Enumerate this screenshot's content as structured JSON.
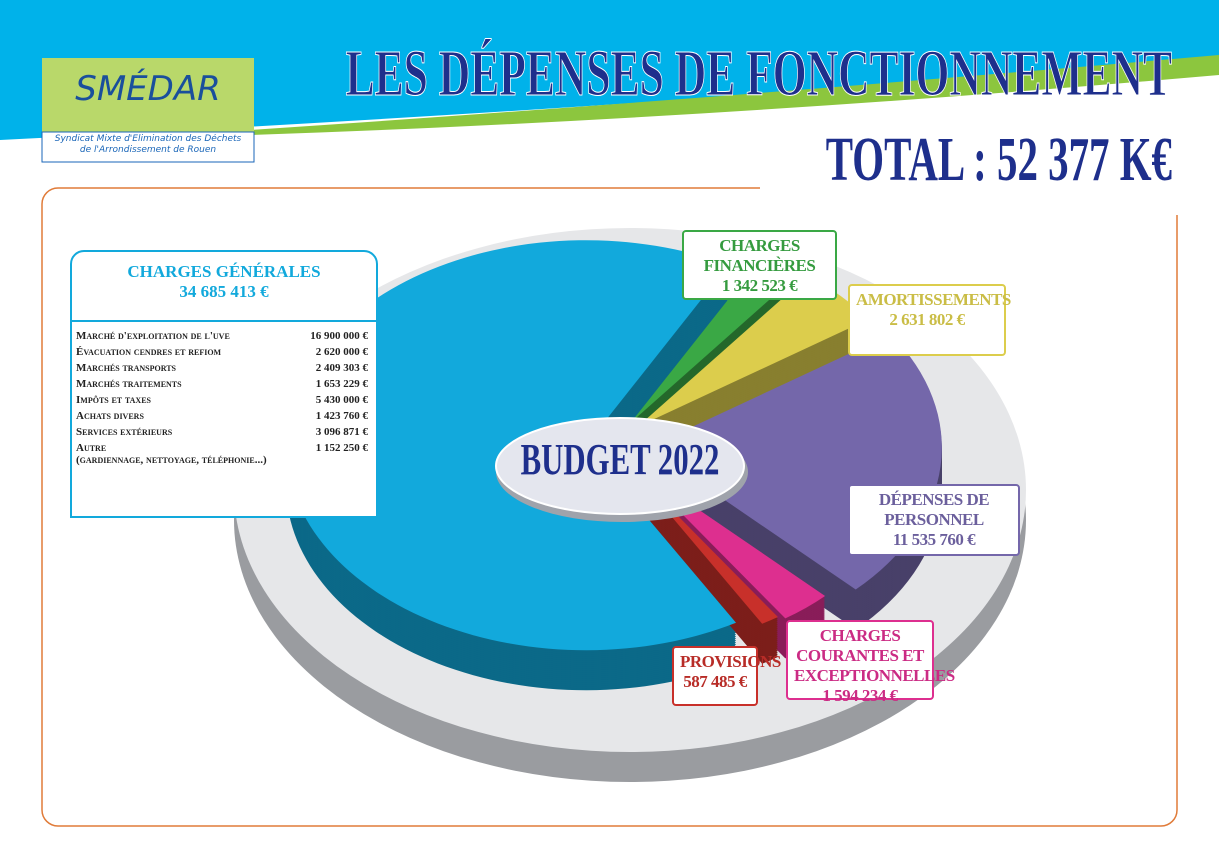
{
  "logo": {
    "name": "SMÉDAR",
    "tagline": "Syndicat Mixte d'Élimination des Déchets de l'Arrondissement de Rouen"
  },
  "chart_data": {
    "type": "pie",
    "title": "LES DÉPENSES DE FONCTIONNEMENT",
    "subtitle": "TOTAL : 52 377 K€",
    "center_label": "BUDGET 2022",
    "categories": [
      "CHARGES GÉNÉRALES",
      "CHARGES FINANCIÈRES",
      "AMORTISSEMENTS",
      "DÉPENSES DE PERSONNEL",
      "CHARGES COURANTES ET EXCEPTIONNELLES",
      "PROVISIONS"
    ],
    "values": [
      34685413,
      1342523,
      2631802,
      11535760,
      1594234,
      587485
    ],
    "value_labels": [
      "34 685 413 €",
      "1 342 523 €",
      "2 631 802 €",
      "11 535 760 €",
      "1 594 234 €",
      "587 485 €"
    ],
    "colors": [
      "#12a9dc",
      "#3aa845",
      "#dccd4c",
      "#7467aa",
      "#dd2f8f",
      "#c8302a"
    ],
    "breakdown": [
      {
        "name": "Marché d'exploitation de l'uve",
        "amount": "16 900 000 €"
      },
      {
        "name": "Évacuation cendres et refiom",
        "amount": "2 620 000 €"
      },
      {
        "name": "Marchés transports",
        "amount": "2 409 303 €"
      },
      {
        "name": "Marchés traitements",
        "amount": "1 653 229 €"
      },
      {
        "name": "Impôts et taxes",
        "amount": "5 430 000 €"
      },
      {
        "name": "Achats divers",
        "amount": "1 423 760 €"
      },
      {
        "name": "Services extérieurs",
        "amount": "3 096 871 €"
      },
      {
        "name": "Autre",
        "detail": "(gardiennage, nettoyage, téléphonie...)",
        "amount": "1 152 250 €"
      }
    ]
  }
}
